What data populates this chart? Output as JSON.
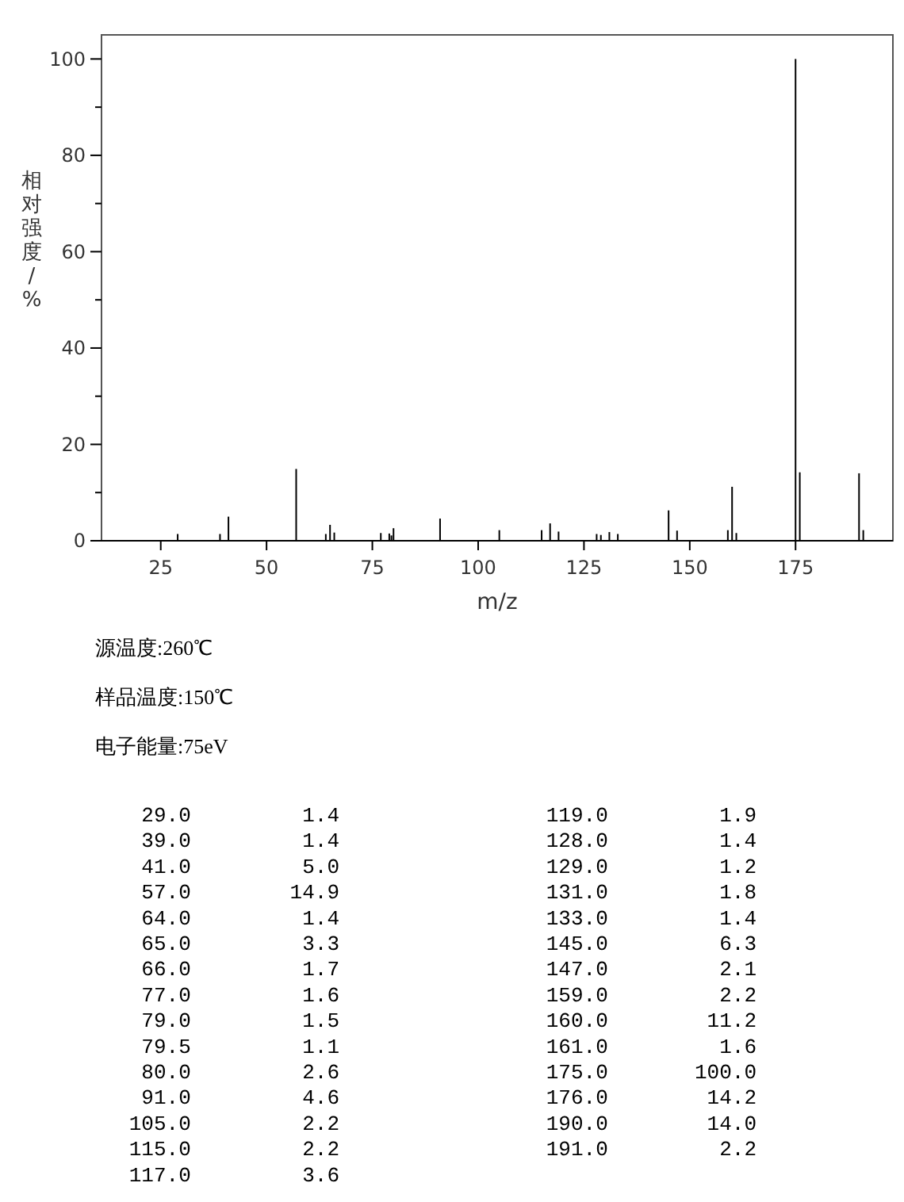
{
  "chart_data": {
    "type": "bar",
    "xlabel": "m/z",
    "ylabel": "相对强度/%",
    "x": [
      29,
      39,
      41,
      57,
      64,
      65,
      66,
      77,
      79,
      79.5,
      80,
      91,
      105,
      115,
      117,
      119,
      128,
      129,
      131,
      133,
      145,
      147,
      159,
      160,
      161,
      175,
      176,
      190,
      191
    ],
    "values": [
      1.4,
      1.4,
      5.0,
      14.9,
      1.4,
      3.3,
      1.7,
      1.6,
      1.5,
      1.1,
      2.6,
      4.6,
      2.2,
      2.2,
      3.6,
      1.9,
      1.4,
      1.2,
      1.8,
      1.4,
      6.3,
      2.1,
      2.2,
      11.2,
      1.6,
      100.0,
      14.2,
      14.0,
      2.2
    ],
    "color": "#000000",
    "xlim": [
      11,
      198
    ],
    "xticks": [
      25,
      50,
      75,
      100,
      125,
      150,
      175
    ],
    "ylim": [
      0,
      105
    ],
    "yticks": [
      0,
      {
        "value": 10,
        "label": null
      },
      20,
      {
        "value": 30,
        "label": null
      },
      40,
      {
        "value": 50,
        "label": null
      },
      60,
      {
        "value": 70,
        "label": null
      },
      80,
      {
        "value": 90,
        "label": null
      },
      100
    ],
    "annotations": [
      "源温度:260℃",
      "样品温度:150℃",
      "电子能量:75eV",
      "29.0         1.4",
      "39.0         1.4",
      "41.0         5.0",
      "57.0        14.9",
      "64.0         1.4",
      "65.0         3.3",
      "66.0         1.7",
      "77.0         1.6",
      "79.0         1.5",
      "79.5         1.1",
      "80.0         2.6",
      "91.0         4.6",
      "105.0         2.2",
      "115.0         2.2",
      "117.0         3.6",
      "119.0         1.9",
      "128.0         1.4",
      "129.0         1.2",
      "131.0         1.8",
      "133.0         1.4",
      "145.0         6.3",
      "147.0         2.1",
      "159.0         2.2",
      "160.0        11.2",
      "161.0         1.6",
      "175.0       100.0",
      "176.0        14.2",
      "190.0        14.0",
      "191.0         2.2"
    ]
  }
}
